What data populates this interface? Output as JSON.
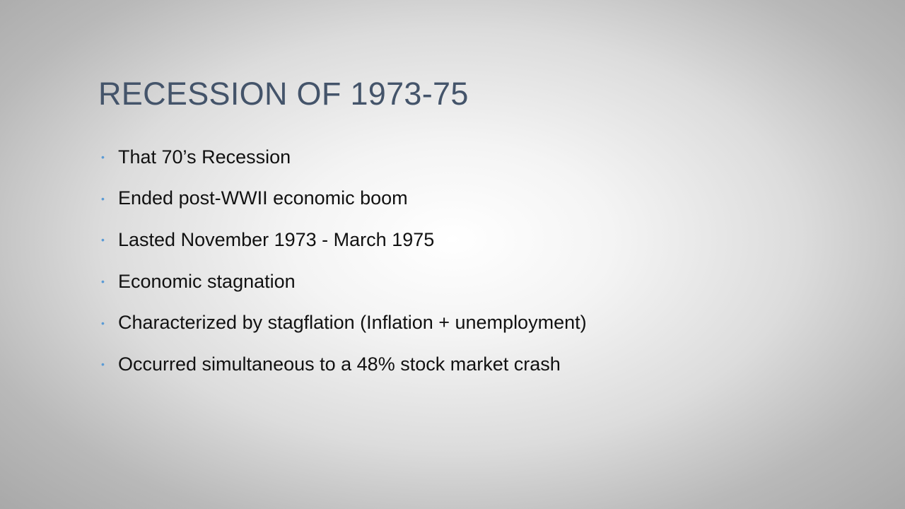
{
  "slide": {
    "title": "RECESSION OF 1973-75",
    "bullet_symbol": "•",
    "bullet_color": "#5b9bd5",
    "title_color": "#44546a",
    "bullets": [
      "That 70’s Recession",
      "Ended post-WWII economic boom",
      "Lasted November 1973 - March 1975",
      "Economic stagnation",
      "Characterized by stagflation (Inflation + unemployment)",
      "Occurred simultaneous to a 48% stock market crash"
    ]
  }
}
